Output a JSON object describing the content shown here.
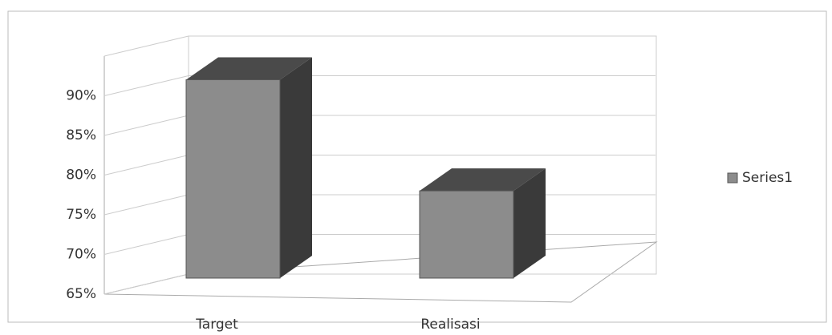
{
  "chart_data": {
    "type": "bar3d",
    "categories": [
      "Target",
      "Realisasi"
    ],
    "series": [
      {
        "name": "Series1",
        "color": "#8c8c8c",
        "values": [
          90,
          76
        ]
      }
    ],
    "ylim": [
      65,
      95
    ],
    "yticks": [
      {
        "value": 65,
        "label": "65%"
      },
      {
        "value": 70,
        "label": "70%"
      },
      {
        "value": 75,
        "label": "75%"
      },
      {
        "value": 80,
        "label": "80%"
      },
      {
        "value": 85,
        "label": "85%"
      },
      {
        "value": 90,
        "label": "90%"
      },
      {
        "value": 95,
        "label": ""
      }
    ],
    "grid": true,
    "legend": "right"
  }
}
